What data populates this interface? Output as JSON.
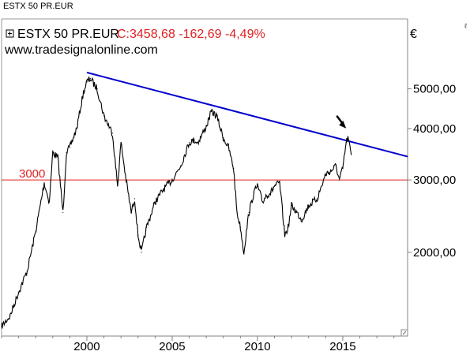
{
  "window": {
    "title": "ESTX 50 PR.EUR",
    "corner_mark": "ℓ"
  },
  "header": {
    "symbol": "ESTX 50 PR.EUR",
    "quote": "C:3458,68 -162,69 -4,49%",
    "source": "www.tradesignalonline.com",
    "currency": "€"
  },
  "colors": {
    "price": "#000000",
    "trendline": "#0000cc",
    "support": "#e02020",
    "quote": "#e02020",
    "frame": "#808080"
  },
  "chart_data": {
    "type": "line",
    "title": "ESTX 50 PR.EUR",
    "y_scale": "log",
    "ylim": [
      1250,
      7400
    ],
    "xlim": [
      1995.0,
      2018.8
    ],
    "x_ticks": [
      2000,
      2005,
      2010,
      2015
    ],
    "x_tick_labels": [
      "2000",
      "2005",
      "2010",
      "2015"
    ],
    "y_ticks": [
      2000,
      3000,
      4000,
      5000
    ],
    "y_tick_labels": [
      "2000,00",
      "3000,00",
      "4000,00",
      "5000,00"
    ],
    "series": [
      {
        "x": [
          1995.0,
          1995.5,
          1996.0,
          1996.5,
          1997.0,
          1997.5,
          1997.8,
          1998.0,
          1998.3,
          1998.6,
          1998.8,
          1999.0,
          1999.4,
          1999.8,
          2000.0,
          2000.2,
          2000.6,
          2001.0,
          2001.5,
          2001.8,
          2002.0,
          2002.3,
          2002.6,
          2002.8,
          2003.0,
          2003.2,
          2003.5,
          2004.0,
          2004.5,
          2005.0,
          2005.5,
          2006.0,
          2006.3,
          2006.5,
          2007.0,
          2007.3,
          2007.6,
          2008.0,
          2008.3,
          2008.6,
          2008.8,
          2009.0,
          2009.2,
          2009.5,
          2009.8,
          2010.0,
          2010.3,
          2010.5,
          2010.8,
          2011.0,
          2011.3,
          2011.6,
          2011.8,
          2012.0,
          2012.3,
          2012.6,
          2013.0,
          2013.5,
          2014.0,
          2014.3,
          2014.6,
          2014.8,
          2015.0,
          2015.2,
          2015.3,
          2015.5
        ],
        "values": [
          1320,
          1400,
          1600,
          1800,
          2250,
          2950,
          2650,
          3500,
          3400,
          2500,
          3500,
          3600,
          4000,
          4900,
          5200,
          5300,
          5000,
          4300,
          3900,
          2900,
          3700,
          3000,
          2500,
          2700,
          2200,
          2000,
          2300,
          2650,
          2850,
          3000,
          3250,
          3700,
          3750,
          3700,
          4050,
          4400,
          4300,
          3800,
          3600,
          3200,
          2500,
          2300,
          2000,
          2500,
          2800,
          2900,
          2650,
          2750,
          2800,
          2900,
          2950,
          2200,
          2300,
          2600,
          2500,
          2400,
          2600,
          2700,
          3100,
          3150,
          3250,
          3000,
          3200,
          3700,
          3800,
          3458
        ],
        "color": "#000000"
      }
    ],
    "lines": [
      {
        "kind": "trend",
        "x": [
          2000.0,
          2018.8
        ],
        "y": [
          5480,
          3420
        ],
        "color": "#0000cc"
      },
      {
        "kind": "horizontal",
        "y": 3000,
        "label": "3000",
        "color": "#e02020"
      }
    ],
    "annotations": [
      {
        "kind": "arrow",
        "x": 2015.2,
        "y": 3900,
        "text": ""
      }
    ],
    "grid": false,
    "legend": "none"
  }
}
